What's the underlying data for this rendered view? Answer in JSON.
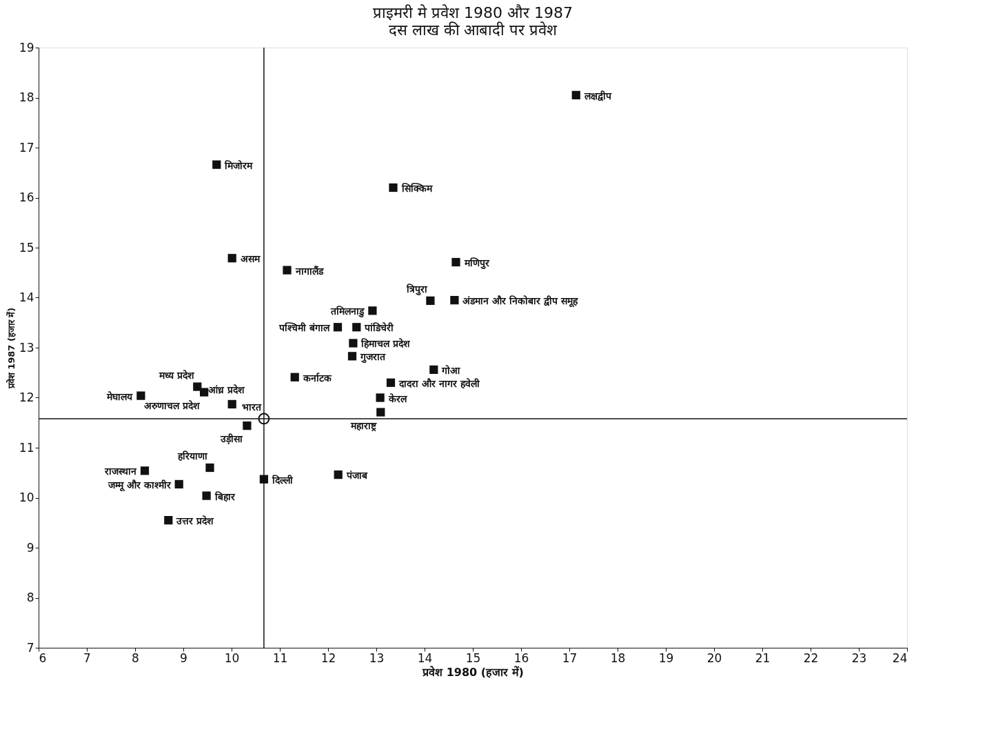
{
  "chart_data": {
    "type": "scatter",
    "title": "प्राइमरी मे प्रवेश 1980 और 1987",
    "subtitle": "दस लाख की आबादी पर प्रवेश",
    "xlabel": "प्रवेश 1980 (हजार में)",
    "ylabel": "प्रवेश 1987 (हजार में)",
    "xlim": [
      6,
      24
    ],
    "xticks": [
      6,
      7,
      8,
      9,
      10,
      11,
      12,
      13,
      14,
      15,
      16,
      17,
      18,
      19,
      20,
      21,
      22,
      23,
      24
    ],
    "ylim": [
      7,
      19
    ],
    "yticks": [
      7,
      8,
      9,
      10,
      11,
      12,
      13,
      14,
      15,
      16,
      17,
      18,
      19
    ],
    "grid": false,
    "series": [
      {
        "color": "#111111",
        "marker": "square",
        "x": [
          17.14,
          9.69,
          13.35,
          10.01,
          11.15,
          14.65,
          14.12,
          14.62,
          12.92,
          12.2,
          12.59,
          12.52,
          12.5,
          14.19,
          13.3,
          11.31,
          13.08,
          13.09,
          9.29,
          9.43,
          8.12,
          10.01,
          10.32,
          9.55,
          8.2,
          8.91,
          9.48,
          8.69,
          10.67,
          12.21
        ],
        "values": [
          18.05,
          16.66,
          16.2,
          14.79,
          14.55,
          14.71,
          13.94,
          13.95,
          13.74,
          13.41,
          13.41,
          13.09,
          12.83,
          12.56,
          12.3,
          12.41,
          12.0,
          11.71,
          12.22,
          12.11,
          12.04,
          11.87,
          11.44,
          10.6,
          10.54,
          10.27,
          10.04,
          9.55,
          10.37,
          10.46
        ]
      },
      {
        "color": "#111111",
        "marker": "circle",
        "x": [
          10.67
        ],
        "values": [
          11.58
        ]
      }
    ],
    "ref_lines": [
      {
        "axis": "x",
        "value": 10.67,
        "color": "#111111"
      },
      {
        "axis": "y",
        "value": 11.58,
        "color": "#111111"
      }
    ],
    "annotations": [
      {
        "text": "लक्षद्वीप",
        "x": 17.14,
        "y": 18.05
      },
      {
        "text": "मिजोरम",
        "x": 9.69,
        "y": 16.66
      },
      {
        "text": "सिक्किम",
        "x": 13.35,
        "y": 16.2
      },
      {
        "text": "असम",
        "x": 10.01,
        "y": 14.79
      },
      {
        "text": "नागालैंड",
        "x": 11.15,
        "y": 14.55
      },
      {
        "text": "मणिपुर",
        "x": 14.65,
        "y": 14.71
      },
      {
        "text": "त्रिपुरा",
        "x": 14.12,
        "y": 13.94
      },
      {
        "text": "अंडमान और निकोबार द्वीप समूह",
        "x": 14.62,
        "y": 13.95
      },
      {
        "text": "तमिलनाडु",
        "x": 12.92,
        "y": 13.74
      },
      {
        "text": "पश्चिमी बंगाल",
        "x": 12.2,
        "y": 13.41
      },
      {
        "text": "पांडिचेरी",
        "x": 12.59,
        "y": 13.41
      },
      {
        "text": "हिमाचल प्रदेश",
        "x": 12.52,
        "y": 13.09
      },
      {
        "text": "गुजरात",
        "x": 12.5,
        "y": 12.83
      },
      {
        "text": "गोआ",
        "x": 14.19,
        "y": 12.56
      },
      {
        "text": "दादरा और नागर हवेली",
        "x": 13.3,
        "y": 12.3
      },
      {
        "text": "कर्नाटक",
        "x": 11.31,
        "y": 12.41
      },
      {
        "text": "केरल",
        "x": 13.08,
        "y": 12.0
      },
      {
        "text": "महाराष्ट्र",
        "x": 13.09,
        "y": 11.71
      },
      {
        "text": "मध्य प्रदेश",
        "x": 9.29,
        "y": 12.22
      },
      {
        "text": "अरुणाचल प्रदेश",
        "x": 9.43,
        "y": 12.11
      },
      {
        "text": "मेघालय",
        "x": 8.12,
        "y": 12.04
      },
      {
        "text": "आंध्र प्रदेश",
        "x": 10.01,
        "y": 11.87
      },
      {
        "text": "उड़ीसा",
        "x": 10.32,
        "y": 11.44
      },
      {
        "text": "हरियाणा",
        "x": 9.55,
        "y": 10.6
      },
      {
        "text": "राजस्थान",
        "x": 8.2,
        "y": 10.54
      },
      {
        "text": "जम्मू और काश्मीर",
        "x": 8.91,
        "y": 10.27
      },
      {
        "text": "बिहार",
        "x": 9.48,
        "y": 10.04
      },
      {
        "text": "उत्तर प्रदेश",
        "x": 8.69,
        "y": 9.55
      },
      {
        "text": "दिल्ली",
        "x": 10.67,
        "y": 10.37
      },
      {
        "text": "पंजाब",
        "x": 12.21,
        "y": 10.46
      },
      {
        "text": "भारत",
        "x": 10.67,
        "y": 11.58
      }
    ]
  }
}
